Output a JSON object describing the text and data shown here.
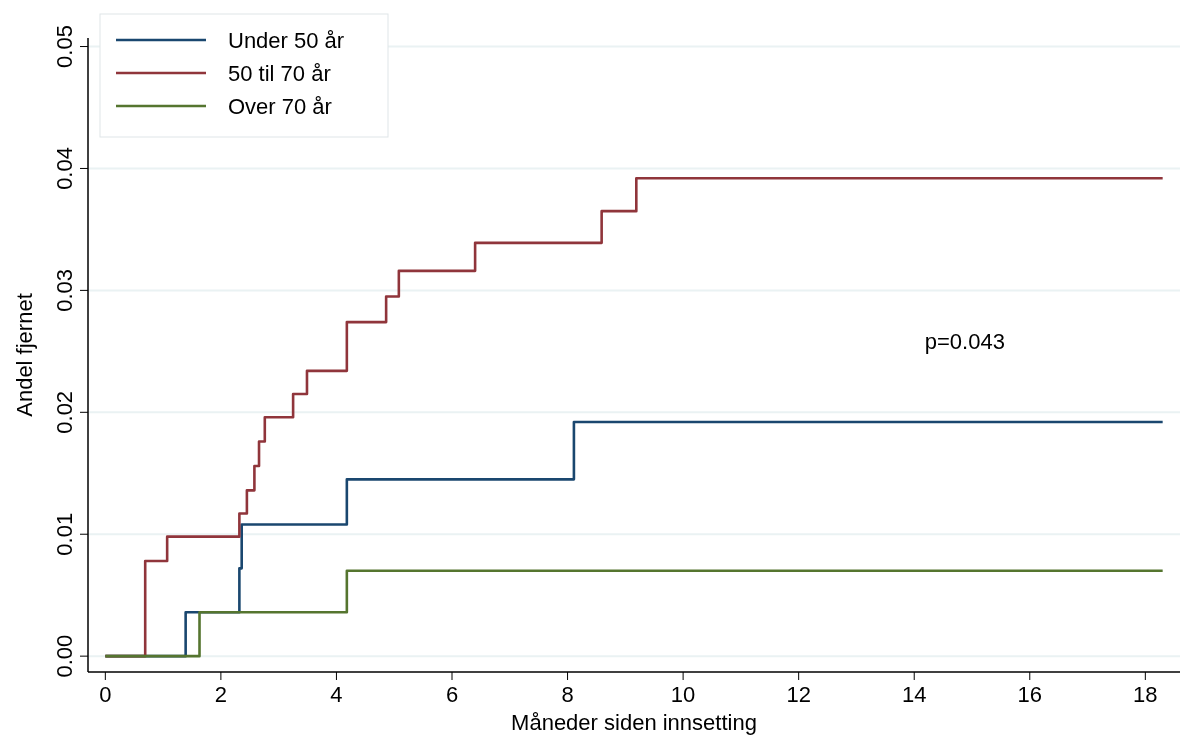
{
  "chart_data": {
    "type": "step",
    "xlabel": "Måneder siden innsetting",
    "ylabel": "Andel fjernet",
    "xlim": [
      -0.3,
      18.6
    ],
    "xticks": [
      0,
      2,
      4,
      6,
      8,
      10,
      12,
      14,
      16,
      18
    ],
    "ylim": [
      -0.0013,
      0.0507
    ],
    "yticks": [
      {
        "value": 0,
        "label": "0.00"
      },
      {
        "value": 0.01,
        "label": "0.01"
      },
      {
        "value": 0.02,
        "label": "0.02"
      },
      {
        "value": 0.03,
        "label": "0.03"
      },
      {
        "value": 0.04,
        "label": "0.04"
      },
      {
        "value": 0.05,
        "label": "0.05"
      }
    ],
    "grid": "y",
    "legend": "top left",
    "line_style": "solid",
    "marker": "none",
    "annotations": [
      "p=0.043"
    ],
    "series": [
      {
        "name": "Under 50 år",
        "color": "#1a476f",
        "x": [
          0,
          1.39,
          2.32,
          2.36,
          4.18,
          8.11,
          18.3
        ],
        "values": [
          0,
          0.0036,
          0.0072,
          0.0108,
          0.0145,
          0.0192,
          0.0192
        ]
      },
      {
        "name": "50 til 70 år",
        "color": "#90353b",
        "x": [
          0,
          0.69,
          1.07,
          2.32,
          2.45,
          2.58,
          2.66,
          2.76,
          3.25,
          3.49,
          4.18,
          4.86,
          5.08,
          6.4,
          8.59,
          9.19,
          18.3
        ],
        "values": [
          0,
          0.0078,
          0.0098,
          0.0117,
          0.0136,
          0.0156,
          0.0176,
          0.0196,
          0.0215,
          0.0234,
          0.0274,
          0.0295,
          0.0316,
          0.0339,
          0.0365,
          0.0392,
          0.0392
        ]
      },
      {
        "name": "Over 70 år",
        "color": "#55752f",
        "x": [
          0,
          1.63,
          4.18,
          18.3
        ],
        "values": [
          0,
          0.0036,
          0.007,
          0.007
        ]
      }
    ]
  }
}
